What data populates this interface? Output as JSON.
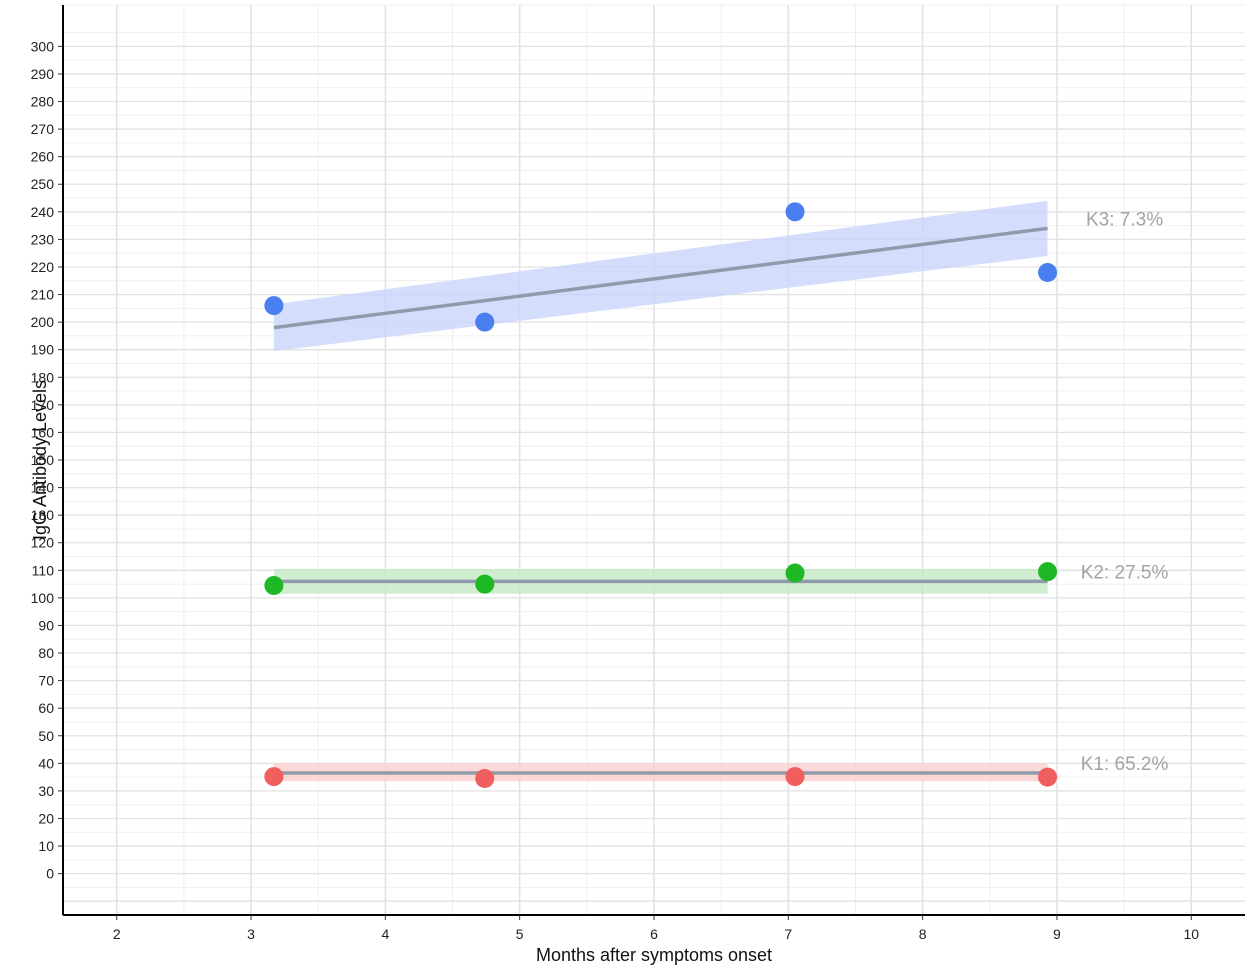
{
  "chart_data": {
    "type": "scatter",
    "xlabel": "Months after symptoms onset",
    "ylabel": "IgG Antibody Levels",
    "xlim": [
      1.6,
      10.4
    ],
    "ylim": [
      -15,
      315
    ],
    "xticks": [
      2,
      3,
      4,
      5,
      6,
      7,
      8,
      9,
      10
    ],
    "yticks": [
      0,
      10,
      20,
      30,
      40,
      50,
      60,
      70,
      80,
      90,
      100,
      110,
      120,
      130,
      140,
      150,
      160,
      170,
      180,
      190,
      200,
      210,
      220,
      230,
      240,
      250,
      260,
      270,
      280,
      290,
      300
    ],
    "grid": true,
    "legend": "none",
    "series": [
      {
        "name": "K3: 7.3%",
        "color": "#4a7ff0",
        "band_color": "#c9d6fb",
        "points": [
          [
            3.17,
            206
          ],
          [
            4.74,
            200
          ],
          [
            7.05,
            240
          ],
          [
            8.93,
            218
          ]
        ],
        "fit": {
          "x": [
            3.17,
            8.93
          ],
          "y": [
            198,
            234
          ]
        },
        "band": {
          "lower": [
            189.5,
            224
          ],
          "upper": [
            206.5,
            244
          ]
        }
      },
      {
        "name": "K2: 27.5%",
        "color": "#1db823",
        "band_color": "#c4e8c4",
        "points": [
          [
            3.17,
            104.5
          ],
          [
            4.74,
            105
          ],
          [
            7.05,
            109
          ],
          [
            8.93,
            109.5
          ]
        ],
        "fit": {
          "x": [
            3.17,
            8.93
          ],
          "y": [
            106,
            106
          ]
        },
        "band": {
          "lower": [
            101.5,
            101.5
          ],
          "upper": [
            110.5,
            110.5
          ]
        }
      },
      {
        "name": "K1: 65.2%",
        "color": "#f05e5e",
        "band_color": "#fad0d0",
        "points": [
          [
            3.17,
            35.2
          ],
          [
            4.74,
            34.5
          ],
          [
            7.05,
            35.2
          ],
          [
            8.93,
            35
          ]
        ],
        "fit": {
          "x": [
            3.17,
            8.93
          ],
          "y": [
            36.5,
            36.5
          ]
        },
        "band": {
          "lower": [
            33.5,
            33.5
          ],
          "upper": [
            40,
            40
          ]
        }
      }
    ],
    "fit_line_color": "#8f9aab"
  }
}
